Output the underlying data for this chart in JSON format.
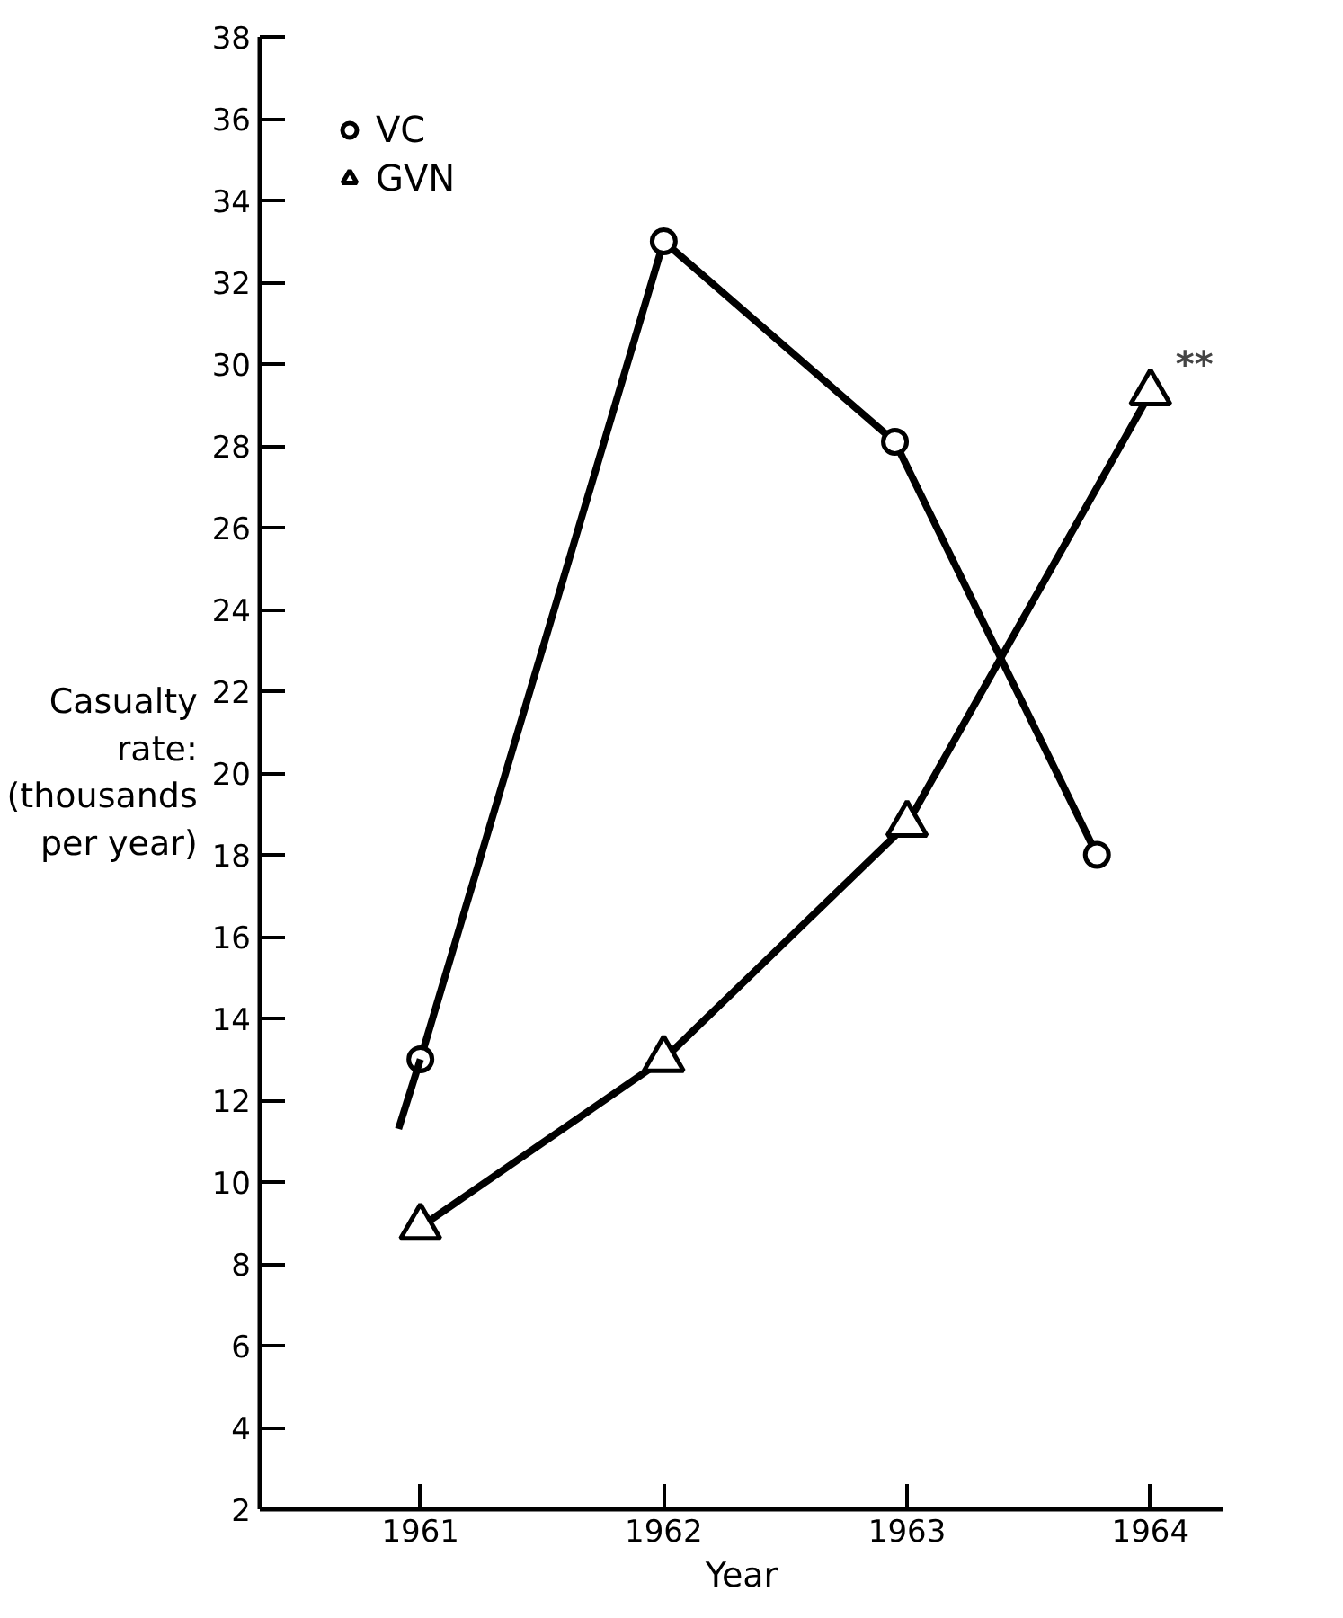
{
  "chart_data": {
    "type": "line",
    "xlabel": "Year",
    "ylabel": "Casualty\nrate:\n(thousands\nper year)",
    "xlim": [
      1960.34,
      1964.3
    ],
    "xticks": [
      1961,
      1962,
      1963,
      1964
    ],
    "ylim": [
      2,
      38
    ],
    "yticks": [
      2,
      4,
      6,
      8,
      10,
      12,
      14,
      16,
      18,
      20,
      22,
      24,
      26,
      28,
      30,
      32,
      34,
      36,
      38
    ],
    "grid": false,
    "legend": "top left",
    "line_style": "solid",
    "series": [
      {
        "name": "VC",
        "color": "#000000",
        "marker": "circle",
        "x": [
          1961,
          1962,
          1962.95,
          1963.78
        ],
        "values": [
          13,
          33,
          28.1,
          18
        ]
      },
      {
        "name": "GVN",
        "color": "#000000",
        "marker": "triangle",
        "x": [
          1961,
          1962,
          1963,
          1964
        ],
        "values": [
          8.9,
          13,
          18.75,
          29.3
        ]
      },
      {
        "color": "#000000",
        "marker": "none",
        "x": [
          1960.91,
          1961
        ],
        "values": [
          11.3,
          13
        ]
      }
    ],
    "annotations": [
      {
        "text": "**",
        "x": 1964,
        "y": 29.3
      }
    ]
  }
}
